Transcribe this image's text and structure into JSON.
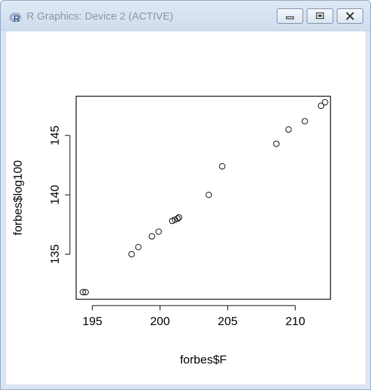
{
  "window": {
    "title": "R Graphics: Device 2 (ACTIVE)",
    "buttons": [
      {
        "icon": "minimize-icon"
      },
      {
        "icon": "maximize-icon"
      },
      {
        "icon": "close-icon"
      }
    ]
  },
  "chart_data": {
    "type": "scatter",
    "title": "",
    "xlabel": "forbes$F",
    "ylabel": "forbes$log100",
    "xlim": [
      193.8,
      212.6
    ],
    "ylim": [
      131.2,
      148.3
    ],
    "xticks": [
      195,
      200,
      205,
      210
    ],
    "yticks": [
      135,
      140,
      145
    ],
    "grid": false,
    "marker": "open-circle",
    "points": [
      {
        "x": 194.3,
        "y": 131.8
      },
      {
        "x": 194.5,
        "y": 131.8
      },
      {
        "x": 197.9,
        "y": 135.0
      },
      {
        "x": 198.4,
        "y": 135.6
      },
      {
        "x": 199.4,
        "y": 136.5
      },
      {
        "x": 199.9,
        "y": 136.9
      },
      {
        "x": 200.9,
        "y": 137.8
      },
      {
        "x": 201.1,
        "y": 137.9
      },
      {
        "x": 201.3,
        "y": 138.0
      },
      {
        "x": 201.4,
        "y": 138.1
      },
      {
        "x": 203.6,
        "y": 140.0
      },
      {
        "x": 204.6,
        "y": 142.4
      },
      {
        "x": 208.6,
        "y": 144.3
      },
      {
        "x": 209.5,
        "y": 145.5
      },
      {
        "x": 210.7,
        "y": 146.2
      },
      {
        "x": 211.9,
        "y": 147.5
      },
      {
        "x": 212.2,
        "y": 147.8
      }
    ]
  }
}
